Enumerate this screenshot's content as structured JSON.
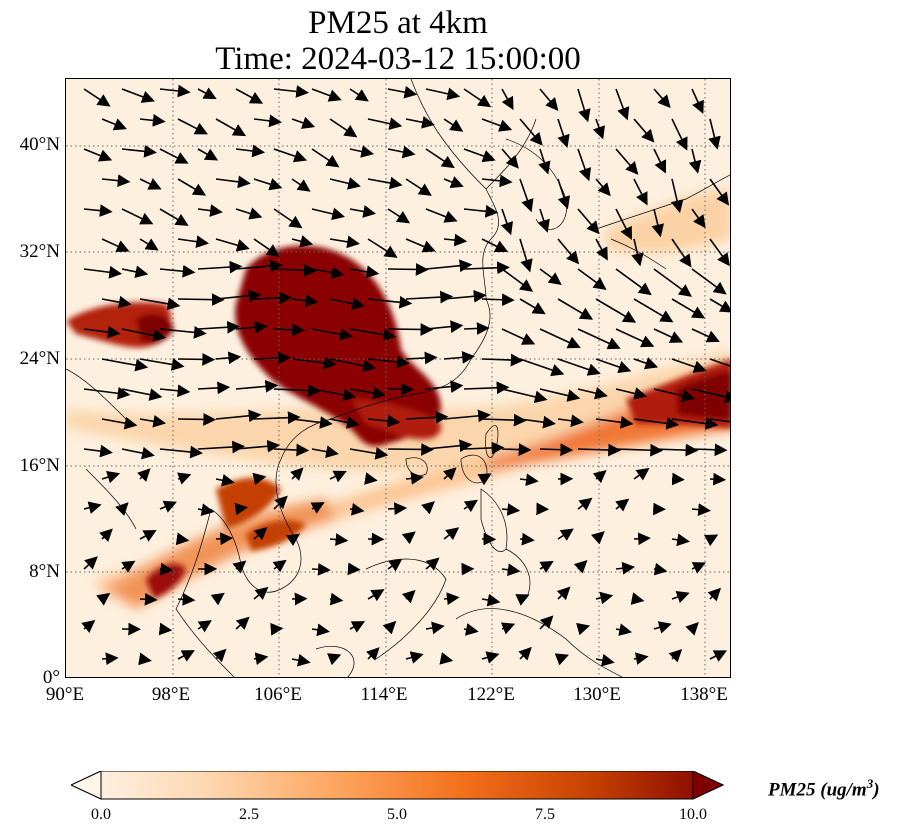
{
  "title": {
    "line1": "PM25 at 4km",
    "line2": "Time: 2024-03-12 15:00:00"
  },
  "map": {
    "extent": {
      "lon_min": 90,
      "lon_max": 140,
      "lat_min": 0,
      "lat_max": 45
    },
    "lat_ticks": [
      {
        "value": 0,
        "label": "0°"
      },
      {
        "value": 8,
        "label": "8°N"
      },
      {
        "value": 16,
        "label": "16°N"
      },
      {
        "value": 24,
        "label": "24°N"
      },
      {
        "value": 32,
        "label": "32°N"
      },
      {
        "value": 40,
        "label": "40°N"
      }
    ],
    "lon_ticks": [
      {
        "value": 90,
        "label": "90°E"
      },
      {
        "value": 98,
        "label": "98°E"
      },
      {
        "value": 106,
        "label": "106°E"
      },
      {
        "value": 114,
        "label": "114°E"
      },
      {
        "value": 122,
        "label": "122°E"
      },
      {
        "value": 130,
        "label": "130°E"
      },
      {
        "value": 138,
        "label": "138°E"
      }
    ],
    "gridlines": true
  },
  "colorbar": {
    "label": "PM25 (ug/m",
    "label_sup": "3",
    "label_end": ")",
    "min": 0.0,
    "max": 10.0,
    "ticks": [
      "0.0",
      "2.5",
      "5.0",
      "7.5",
      "10.0"
    ],
    "colors": [
      "#fff5eb",
      "#fdd9b4",
      "#fda762",
      "#f3701b",
      "#c54102",
      "#7f0000"
    ],
    "extend": "both"
  }
}
